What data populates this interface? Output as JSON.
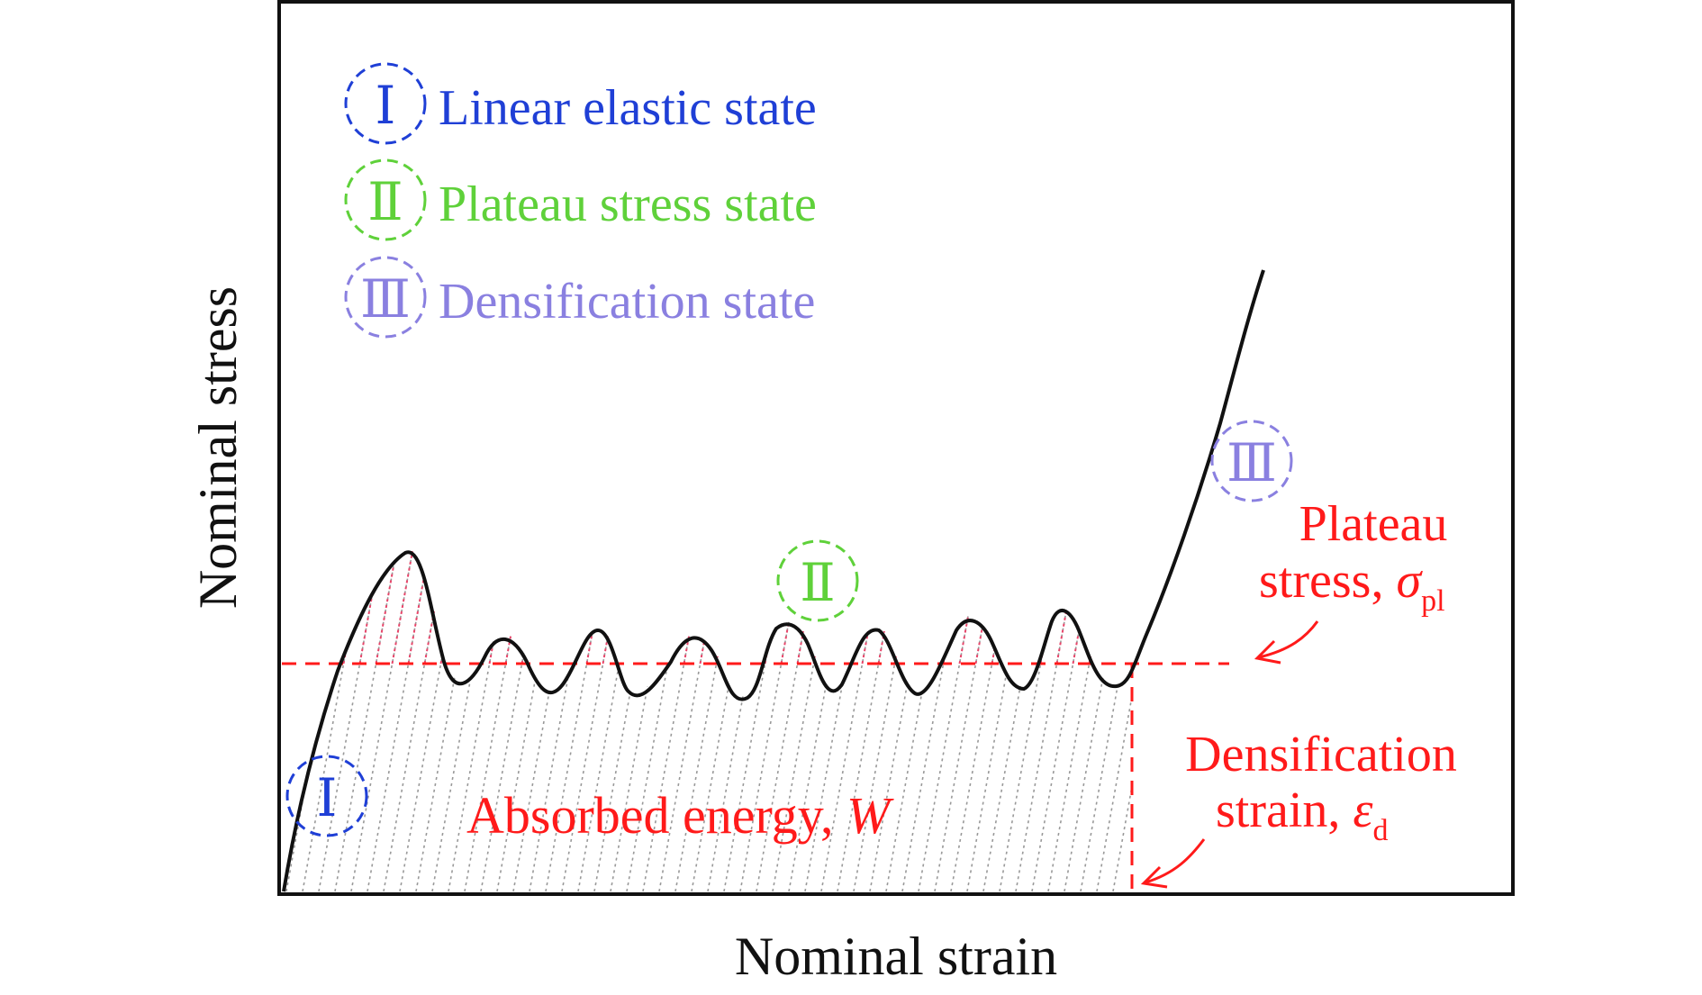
{
  "axes": {
    "xlabel": "Nominal strain",
    "ylabel": "Nominal stress"
  },
  "legend": [
    {
      "numeral": "Ⅰ",
      "label": "Linear elastic state",
      "color": "#1f3fd6"
    },
    {
      "numeral": "Ⅱ",
      "label": "Plateau stress state",
      "color": "#5fd13a"
    },
    {
      "numeral": "Ⅲ",
      "label": "Densification state",
      "color": "#8a80e0"
    }
  ],
  "stage_markers": [
    {
      "numeral": "Ⅰ",
      "color": "#1f3fd6"
    },
    {
      "numeral": "Ⅱ",
      "color": "#5fd13a"
    },
    {
      "numeral": "Ⅲ",
      "color": "#8a80e0"
    }
  ],
  "annotations": {
    "plateau_stress": {
      "line1": "Plateau",
      "line2": "stress, ",
      "symbol": "σ",
      "subscript": "pl"
    },
    "densification_strain": {
      "line1": "Densification",
      "line2": "strain, ",
      "symbol": "ε",
      "subscript": "d"
    },
    "absorbed_energy": {
      "text": "Absorbed energy, ",
      "symbol": "W"
    }
  },
  "colors": {
    "annotation": "#ff1a1a",
    "curve": "#111111",
    "frame": "#111111",
    "hatch_red": "#e8456a",
    "hatch_gray": "#999999"
  }
}
